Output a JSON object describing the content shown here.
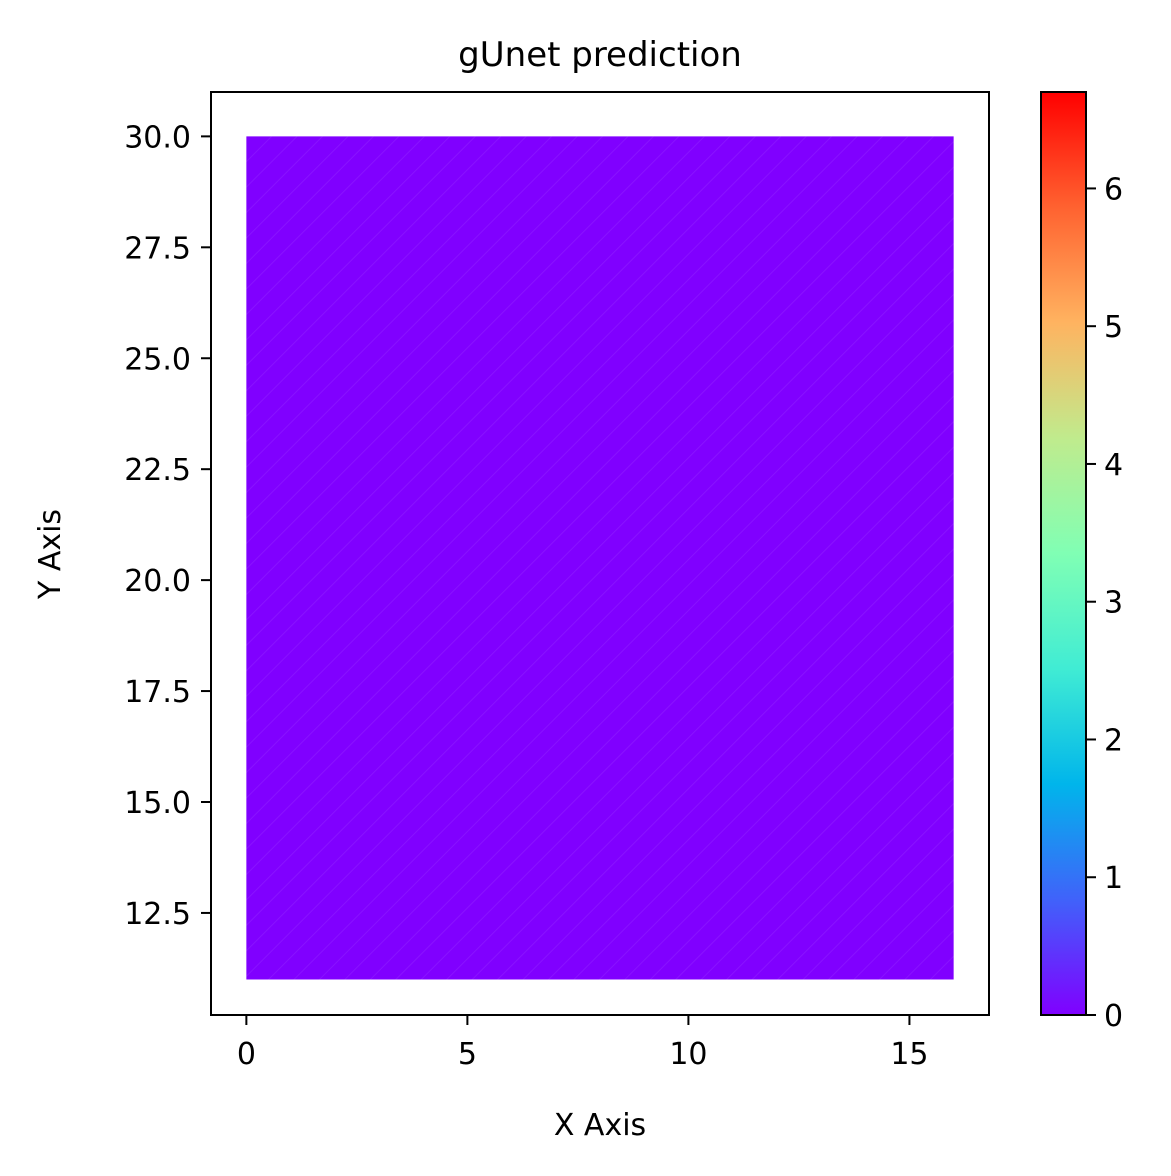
{
  "chart_data": {
    "type": "heatmap",
    "title": "gUnet prediction",
    "xlabel": "X Axis",
    "ylabel": "Y Axis",
    "xlim": [
      -0.8,
      16.8
    ],
    "ylim": [
      10.2,
      31.0
    ],
    "xticks": [
      0,
      5,
      10,
      15
    ],
    "xtick_labels": [
      "0",
      "5",
      "10",
      "15"
    ],
    "yticks": [
      12.5,
      15.0,
      17.5,
      20.0,
      22.5,
      25.0,
      27.5,
      30.0
    ],
    "ytick_labels": [
      "12.5",
      "15.0",
      "17.5",
      "20.0",
      "22.5",
      "25.0",
      "27.5",
      "30.0"
    ],
    "data_extent": {
      "x": [
        0,
        16
      ],
      "y": [
        11,
        30
      ]
    },
    "field_value": 0,
    "field_color": "#8000ff",
    "grid": false,
    "colorbar": {
      "label": "",
      "range": [
        0,
        6.7
      ],
      "ticks": [
        0,
        1,
        2,
        3,
        4,
        5,
        6
      ],
      "tick_labels": [
        "0",
        "1",
        "2",
        "3",
        "4",
        "5",
        "6"
      ],
      "colormap": "rainbow",
      "stops": [
        "#8000ff",
        "#4062fa",
        "#00b5eb",
        "#40ecd4",
        "#80ffb4",
        "#c0eb8d",
        "#ffb360",
        "#ff6230",
        "#ff0000"
      ]
    }
  }
}
